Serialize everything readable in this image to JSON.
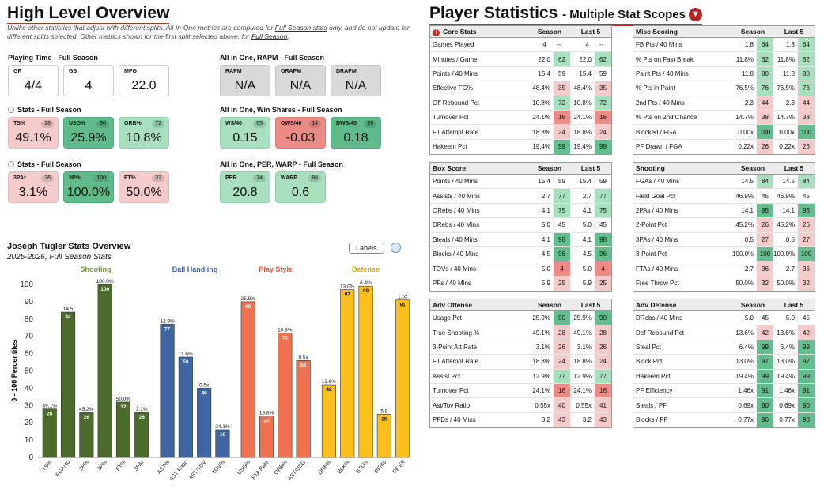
{
  "overview": {
    "title": "High Level Overview",
    "disclaimer": {
      "p1": "Unlike other statistics that adjust with different splits, All-in-One metrics are computed for ",
      "link1": "Full Season stats",
      "p2": " only, and do not update for different splits selected. Other metrics shown for the first split selected above, for ",
      "link2": "Full Season",
      "p3": "."
    },
    "playing_time": {
      "title": "Playing Time - Full Season",
      "cards": [
        {
          "label": "GP",
          "value": "4/4"
        },
        {
          "label": "GS",
          "value": "4"
        },
        {
          "label": "MPG",
          "value": "22.0"
        }
      ]
    },
    "stats1": {
      "title": "Stats - Full Season",
      "cards": [
        {
          "label": "TS%",
          "value": "49.1%",
          "pct": "28",
          "color": "pink"
        },
        {
          "label": "USG%",
          "value": "25.9%",
          "pct": "90",
          "color": "green"
        },
        {
          "label": "ORB%",
          "value": "10.8%",
          "pct": "72",
          "color": "lgreen"
        }
      ]
    },
    "stats2": {
      "title": "Stats - Full Season",
      "cards": [
        {
          "label": "3PAr",
          "value": "3.1%",
          "pct": "26",
          "color": "pink"
        },
        {
          "label": "3P%",
          "value": "100.0%",
          "pct": "100",
          "color": "green"
        },
        {
          "label": "FT%",
          "value": "50.0%",
          "pct": "32",
          "color": "pink"
        }
      ]
    },
    "rapm": {
      "title": "All in One, RAPM - Full Season",
      "cards": [
        {
          "label": "RAPM",
          "value": "N/A",
          "color": "gray"
        },
        {
          "label": "ORAPM",
          "value": "N/A",
          "color": "gray"
        },
        {
          "label": "DRAPM",
          "value": "N/A",
          "color": "gray"
        }
      ]
    },
    "winshares": {
      "title": "All in One, Win Shares - Full Season",
      "cards": [
        {
          "label": "WS/40",
          "value": "0.15",
          "pct": "65",
          "color": "lgreen"
        },
        {
          "label": "OWS/40",
          "value": "-0.03",
          "pct": "14",
          "color": "red"
        },
        {
          "label": "DWS/40",
          "value": "0.18",
          "pct": "99",
          "color": "green"
        }
      ]
    },
    "per": {
      "title": "All in One, PER, WARP - Full Season",
      "cards": [
        {
          "label": "PER",
          "value": "20.8",
          "pct": "74",
          "color": "lgreen"
        },
        {
          "label": "WARP",
          "value": "0.6",
          "pct": "86",
          "color": "lgreen"
        }
      ]
    }
  },
  "chart_header": {
    "title": "Joseph Tugler Stats Overview",
    "subtitle": "2025-2026, Full Season Stats",
    "labels_button": "Labels"
  },
  "chart_data": {
    "type": "bar",
    "ylabel": "0 - 100 Percentiles",
    "ylim": [
      0,
      100
    ],
    "yticks": [
      0,
      10,
      20,
      30,
      40,
      50,
      60,
      70,
      80,
      90,
      100
    ],
    "groups": [
      {
        "name": "Shooting",
        "color": "#4a6b2a",
        "label_color": "#6d9a2f"
      },
      {
        "name": "Ball Handling",
        "color": "#3f65a3",
        "label_color": "#3f65a3"
      },
      {
        "name": "Play Style",
        "color": "#f0714f",
        "label_color": "#e8553b"
      },
      {
        "name": "Defense",
        "color": "#fbbf1c",
        "label_color": "#e0a800"
      }
    ],
    "bars": [
      {
        "cat": "TS%",
        "group": 0,
        "value": 28,
        "label": "49.1%"
      },
      {
        "cat": "FGA/40",
        "group": 0,
        "value": 84,
        "label": "14.5"
      },
      {
        "cat": "2P%",
        "group": 0,
        "value": 26,
        "label": "45.2%"
      },
      {
        "cat": "3P%",
        "group": 0,
        "value": 100,
        "label": "100.0%"
      },
      {
        "cat": "FT%",
        "group": 0,
        "value": 32,
        "label": "50.0%"
      },
      {
        "cat": "3PAr",
        "group": 0,
        "value": 26,
        "label": "3.1%"
      },
      {
        "cat": "AST%",
        "group": 1,
        "value": 77,
        "label": "12.9%"
      },
      {
        "cat": "AST Ratio",
        "group": 1,
        "value": 58,
        "label": "11.6%"
      },
      {
        "cat": "AST/TOV",
        "group": 1,
        "value": 40,
        "label": "0.5x"
      },
      {
        "cat": "TOV%",
        "group": 1,
        "value": 16,
        "label": "24.1%"
      },
      {
        "cat": "USG%",
        "group": 2,
        "value": 90,
        "label": "25.9%"
      },
      {
        "cat": "FTA Rate",
        "group": 2,
        "value": 24,
        "label": "18.8%"
      },
      {
        "cat": "ORB%",
        "group": 2,
        "value": 72,
        "label": "10.8%"
      },
      {
        "cat": "AST/USG",
        "group": 2,
        "value": 56,
        "label": "0.5x"
      },
      {
        "cat": "DRB%",
        "group": 3,
        "value": 42,
        "label": "13.6%"
      },
      {
        "cat": "BLK%",
        "group": 3,
        "value": 97,
        "label": "13.0%"
      },
      {
        "cat": "STL%",
        "group": 3,
        "value": 99,
        "label": "6.4%"
      },
      {
        "cat": "PF/40",
        "group": 3,
        "value": 25,
        "label": "5.9"
      },
      {
        "cat": "PF Eff",
        "group": 3,
        "value": 91,
        "label": "1.5x"
      }
    ]
  },
  "player_stats": {
    "title": "Player Statistics",
    "subtitle": "- Multiple Stat Scopes",
    "col_season": "Season",
    "col_last5": "Last 5",
    "tables": [
      {
        "id": "core",
        "title": "Core Stats",
        "info": true,
        "rows": [
          [
            "Games Played",
            "4",
            "--",
            "4",
            "--"
          ],
          [
            "Minutes / Game",
            "22.0",
            "62",
            "22.0",
            "62"
          ],
          [
            "Points / 40 Mins",
            "15.4",
            "59",
            "15.4",
            "59"
          ],
          [
            "Effective FG%",
            "48.4%",
            "35",
            "48.4%",
            "35"
          ],
          [
            "Off Rebound Pct",
            "10.8%",
            "72",
            "10.8%",
            "72"
          ],
          [
            "Turnover Pct",
            "24.1%",
            "16",
            "24.1%",
            "16"
          ],
          [
            "FT Attempt Rate",
            "18.8%",
            "24",
            "18.8%",
            "24"
          ],
          [
            "Hakeem Pct",
            "19.4%",
            "99",
            "19.4%",
            "99"
          ]
        ]
      },
      {
        "id": "misc",
        "title": "Misc Scoring",
        "rows": [
          [
            "FB Pts / 40 Mins",
            "1.8",
            "64",
            "1.8",
            "64"
          ],
          [
            "% Pts on Fast Break",
            "11.8%",
            "62",
            "11.8%",
            "62"
          ],
          [
            "Paint Pts / 40 Mins",
            "11.8",
            "80",
            "11.8",
            "80"
          ],
          [
            "% Pts in Paint",
            "76.5%",
            "76",
            "76.5%",
            "76"
          ],
          [
            "2nd Pts / 40 Mins",
            "2.3",
            "44",
            "2.3",
            "44"
          ],
          [
            "% Pts on 2nd Chance",
            "14.7%",
            "38",
            "14.7%",
            "38"
          ],
          [
            "Blocked / FGA",
            "0.00x",
            "100",
            "0.00x",
            "100"
          ],
          [
            "PF Drawn / FGA",
            "0.22x",
            "26",
            "0.22x",
            "26"
          ]
        ]
      },
      {
        "id": "box",
        "title": "Box Score",
        "rows": [
          [
            "Points / 40 Mins",
            "15.4",
            "59",
            "15.4",
            "59"
          ],
          [
            "Assists / 40 Mins",
            "2.7",
            "77",
            "2.7",
            "77"
          ],
          [
            "ORebs / 40 Mins",
            "4.1",
            "75",
            "4.1",
            "75"
          ],
          [
            "DRebs / 40 Mins",
            "5.0",
            "45",
            "5.0",
            "45"
          ],
          [
            "Steals / 40 Mins",
            "4.1",
            "98",
            "4.1",
            "98"
          ],
          [
            "Blocks / 40 Mins",
            "4.5",
            "96",
            "4.5",
            "96"
          ],
          [
            "TOVs / 40 Mins",
            "5.0",
            "4",
            "5.0",
            "4"
          ],
          [
            "PFs / 40 Mins",
            "5.9",
            "25",
            "5.9",
            "25"
          ]
        ]
      },
      {
        "id": "shooting",
        "title": "Shooting",
        "rows": [
          [
            "FGAs / 40 Mins",
            "14.5",
            "84",
            "14.5",
            "84"
          ],
          [
            "Field Goal Pct",
            "46.9%",
            "45",
            "46.9%",
            "45"
          ],
          [
            "2PAs / 40 Mins",
            "14.1",
            "95",
            "14.1",
            "95"
          ],
          [
            "2-Point Pct",
            "45.2%",
            "26",
            "45.2%",
            "26"
          ],
          [
            "3PAs / 40 Mins",
            "0.5",
            "27",
            "0.5",
            "27"
          ],
          [
            "3-Point Pct",
            "100.0%",
            "100",
            "100.0%",
            "100"
          ],
          [
            "FTAs / 40 Mins",
            "2.7",
            "36",
            "2.7",
            "36"
          ],
          [
            "Free Throw Pct",
            "50.0%",
            "32",
            "50.0%",
            "32"
          ]
        ]
      },
      {
        "id": "advoff",
        "title": "Adv Offense",
        "rows": [
          [
            "Usage Pct",
            "25.9%",
            "90",
            "25.9%",
            "90"
          ],
          [
            "True Shooting %",
            "49.1%",
            "28",
            "49.1%",
            "28"
          ],
          [
            "3-Point Att Rate",
            "3.1%",
            "26",
            "3.1%",
            "26"
          ],
          [
            "FT Attempt Rate",
            "18.8%",
            "24",
            "18.8%",
            "24"
          ],
          [
            "Assist Pct",
            "12.9%",
            "77",
            "12.9%",
            "77"
          ],
          [
            "Turnover Pct",
            "24.1%",
            "16",
            "24.1%",
            "16"
          ],
          [
            "Ast/Tov Ratio",
            "0.55x",
            "40",
            "0.55x",
            "41"
          ],
          [
            "PFDs / 40 Mins",
            "3.2",
            "43",
            "3.2",
            "43"
          ]
        ]
      },
      {
        "id": "advdef",
        "title": "Adv Defense",
        "rows": [
          [
            "DRebs / 40 Mins",
            "5.0",
            "45",
            "5.0",
            "45"
          ],
          [
            "Def Rebound Pct",
            "13.6%",
            "42",
            "13.6%",
            "42"
          ],
          [
            "Steal Pct",
            "6.4%",
            "99",
            "6.4%",
            "99"
          ],
          [
            "Block Pct",
            "13.0%",
            "97",
            "13.0%",
            "97"
          ],
          [
            "Hakeem Pct",
            "19.4%",
            "99",
            "19.4%",
            "99"
          ],
          [
            "PF Efficiency",
            "1.46x",
            "91",
            "1.46x",
            "91"
          ],
          [
            "Steals / PF",
            "0.69x",
            "90",
            "0.69x",
            "90"
          ],
          [
            "Blocks / PF",
            "0.77x",
            "90",
            "0.77x",
            "90"
          ]
        ]
      }
    ]
  }
}
